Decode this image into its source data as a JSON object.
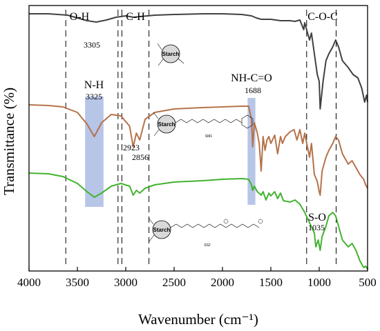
{
  "chart_data": {
    "type": "line",
    "title": "",
    "xlabel": "Wavenumber (cm⁻¹)",
    "ylabel": "Transmittance (%)",
    "xlim": [
      4000,
      500
    ],
    "x_reversed": true,
    "x_ticks": [
      4000,
      3500,
      3000,
      2500,
      2000,
      1500,
      1000,
      500
    ],
    "y_ticks_shown": false,
    "grid": false,
    "legend": "none",
    "series": [
      {
        "color": "#404040",
        "points": [
          [
            4000,
            12
          ],
          [
            3800,
            12
          ],
          [
            3600,
            14
          ],
          [
            3500,
            18
          ],
          [
            3400,
            22
          ],
          [
            3305,
            24
          ],
          [
            3200,
            21
          ],
          [
            3100,
            17
          ],
          [
            3000,
            15
          ],
          [
            2920,
            17
          ],
          [
            2850,
            16
          ],
          [
            2700,
            14
          ],
          [
            2500,
            13
          ],
          [
            2200,
            12
          ],
          [
            2000,
            12
          ],
          [
            1800,
            13
          ],
          [
            1700,
            15
          ],
          [
            1650,
            18
          ],
          [
            1600,
            20
          ],
          [
            1500,
            20
          ],
          [
            1400,
            22
          ],
          [
            1300,
            22
          ],
          [
            1250,
            23
          ],
          [
            1200,
            21
          ],
          [
            1160,
            35
          ],
          [
            1150,
            25
          ],
          [
            1100,
            50
          ],
          [
            1080,
            40
          ],
          [
            1050,
            70
          ],
          [
            1020,
            100
          ],
          [
            1000,
            110
          ],
          [
            990,
            150
          ],
          [
            960,
            110
          ],
          [
            930,
            80
          ],
          [
            900,
            70
          ],
          [
            860,
            60
          ],
          [
            830,
            50
          ],
          [
            800,
            60
          ],
          [
            760,
            80
          ],
          [
            700,
            90
          ],
          [
            650,
            100
          ],
          [
            600,
            105
          ],
          [
            560,
            120
          ],
          [
            530,
            140
          ],
          [
            510,
            130
          ],
          [
            500,
            140
          ]
        ]
      },
      {
        "color": "#b5724a",
        "points": [
          [
            4000,
            144
          ],
          [
            3800,
            145
          ],
          [
            3650,
            147
          ],
          [
            3500,
            155
          ],
          [
            3400,
            172
          ],
          [
            3325,
            190
          ],
          [
            3250,
            170
          ],
          [
            3150,
            158
          ],
          [
            3050,
            160
          ],
          [
            2960,
            175
          ],
          [
            2923,
            205
          ],
          [
            2890,
            185
          ],
          [
            2856,
            195
          ],
          [
            2800,
            165
          ],
          [
            2700,
            155
          ],
          [
            2500,
            150
          ],
          [
            2200,
            148
          ],
          [
            2000,
            147
          ],
          [
            1800,
            146
          ],
          [
            1730,
            146
          ],
          [
            1700,
            165
          ],
          [
            1688,
            205
          ],
          [
            1670,
            170
          ],
          [
            1640,
            185
          ],
          [
            1620,
            200
          ],
          [
            1600,
            240
          ],
          [
            1580,
            190
          ],
          [
            1560,
            210
          ],
          [
            1540,
            195
          ],
          [
            1520,
            190
          ],
          [
            1500,
            200
          ],
          [
            1460,
            188
          ],
          [
            1430,
            215
          ],
          [
            1400,
            190
          ],
          [
            1380,
            200
          ],
          [
            1350,
            190
          ],
          [
            1300,
            183
          ],
          [
            1260,
            180
          ],
          [
            1230,
            195
          ],
          [
            1200,
            180
          ],
          [
            1170,
            200
          ],
          [
            1150,
            185
          ],
          [
            1100,
            220
          ],
          [
            1080,
            200
          ],
          [
            1050,
            245
          ],
          [
            1020,
            255
          ],
          [
            1000,
            270
          ],
          [
            990,
            275
          ],
          [
            970,
            240
          ],
          [
            930,
            220
          ],
          [
            900,
            210
          ],
          [
            860,
            200
          ],
          [
            830,
            190
          ],
          [
            800,
            195
          ],
          [
            760,
            215
          ],
          [
            700,
            230
          ],
          [
            660,
            225
          ],
          [
            620,
            235
          ],
          [
            580,
            245
          ],
          [
            540,
            252
          ],
          [
            520,
            260
          ],
          [
            500,
            265
          ]
        ]
      },
      {
        "color": "#42b22f",
        "points": [
          [
            4000,
            243
          ],
          [
            3800,
            244
          ],
          [
            3650,
            248
          ],
          [
            3500,
            258
          ],
          [
            3400,
            270
          ],
          [
            3325,
            278
          ],
          [
            3250,
            272
          ],
          [
            3150,
            262
          ],
          [
            3050,
            258
          ],
          [
            2960,
            262
          ],
          [
            2923,
            275
          ],
          [
            2890,
            268
          ],
          [
            2856,
            272
          ],
          [
            2800,
            265
          ],
          [
            2700,
            260
          ],
          [
            2500,
            256
          ],
          [
            2200,
            254
          ],
          [
            2000,
            252
          ],
          [
            1800,
            251
          ],
          [
            1730,
            252
          ],
          [
            1700,
            260
          ],
          [
            1688,
            268
          ],
          [
            1670,
            262
          ],
          [
            1640,
            270
          ],
          [
            1600,
            275
          ],
          [
            1580,
            270
          ],
          [
            1550,
            282
          ],
          [
            1520,
            272
          ],
          [
            1500,
            276
          ],
          [
            1460,
            270
          ],
          [
            1430,
            280
          ],
          [
            1400,
            272
          ],
          [
            1370,
            283
          ],
          [
            1300,
            285
          ],
          [
            1250,
            282
          ],
          [
            1200,
            288
          ],
          [
            1150,
            300
          ],
          [
            1100,
            315
          ],
          [
            1050,
            330
          ],
          [
            1035,
            350
          ],
          [
            1010,
            340
          ],
          [
            990,
            355
          ],
          [
            970,
            335
          ],
          [
            930,
            320
          ],
          [
            900,
            305
          ],
          [
            860,
            300
          ],
          [
            830,
            305
          ],
          [
            800,
            320
          ],
          [
            760,
            340
          ],
          [
            700,
            350
          ],
          [
            660,
            345
          ],
          [
            620,
            355
          ],
          [
            580,
            370
          ],
          [
            540,
            380
          ],
          [
            520,
            378
          ],
          [
            500,
            382
          ]
        ]
      }
    ],
    "bands": [
      {
        "center": 3325,
        "from": 3420,
        "to": 3230,
        "color": "#aabbe3"
      },
      {
        "center": 1688,
        "from": 1740,
        "to": 1660,
        "color": "#aabbe3"
      }
    ],
    "dashed_lines": [
      3620,
      3080,
      3040,
      2760,
      1130,
      825
    ],
    "annotations": [
      {
        "label": "O-H",
        "value": "3305"
      },
      {
        "label": "C-H",
        "values": [
          "2923",
          "2856"
        ]
      },
      {
        "label": "N-H",
        "value": "3325"
      },
      {
        "label": "NH-C=O",
        "value": "1688"
      },
      {
        "label": "C-O-C"
      },
      {
        "label": "S-O",
        "value": "1035"
      }
    ],
    "structures": [
      {
        "label": "Starch",
        "code": ""
      },
      {
        "label": "Starch",
        "code": "SM1"
      },
      {
        "label": "Starch",
        "code": "SS2"
      }
    ]
  }
}
